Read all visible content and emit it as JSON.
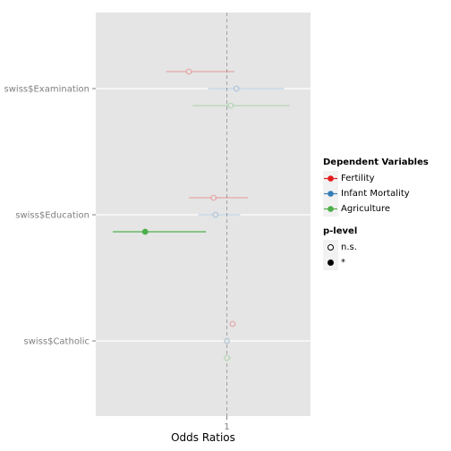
{
  "chart_data": {
    "type": "forest",
    "title": "",
    "xlabel": "Odds Ratios",
    "ylabel": "",
    "x_ticks": [
      "1"
    ],
    "reference_line": 1,
    "terms": [
      "swiss$Examination",
      "swiss$Education",
      "swiss$Catholic"
    ],
    "series": [
      {
        "name": "Fertility",
        "color": "#e41a1c",
        "estimates": [
          {
            "term": "swiss$Examination",
            "or": 0.8,
            "low": 0.68,
            "high": 1.04,
            "significant": false
          },
          {
            "term": "swiss$Education",
            "or": 0.93,
            "low": 0.8,
            "high": 1.11,
            "significant": false
          },
          {
            "term": "swiss$Catholic",
            "or": 1.03,
            "low": 1.02,
            "high": 1.04,
            "significant": false
          }
        ]
      },
      {
        "name": "Infant Mortality",
        "color": "#377eb8",
        "estimates": [
          {
            "term": "swiss$Examination",
            "or": 1.05,
            "low": 0.9,
            "high": 1.3,
            "significant": false
          },
          {
            "term": "swiss$Education",
            "or": 0.94,
            "low": 0.85,
            "high": 1.07,
            "significant": false
          },
          {
            "term": "swiss$Catholic",
            "or": 1.0,
            "low": 0.99,
            "high": 1.01,
            "significant": false
          }
        ]
      },
      {
        "name": "Agriculture",
        "color": "#4daf4a",
        "estimates": [
          {
            "term": "swiss$Examination",
            "or": 1.02,
            "low": 0.82,
            "high": 1.33,
            "significant": false
          },
          {
            "term": "swiss$Education",
            "or": 0.57,
            "low": 0.4,
            "high": 0.89,
            "significant": true
          },
          {
            "term": "swiss$Catholic",
            "or": 1.0,
            "low": 0.99,
            "high": 1.02,
            "significant": false
          }
        ]
      }
    ],
    "legend": {
      "placement": "right",
      "color_title": "Dependent Variables",
      "shape_title": "p-level",
      "shape_entries": [
        "n.s.",
        "*"
      ]
    }
  }
}
